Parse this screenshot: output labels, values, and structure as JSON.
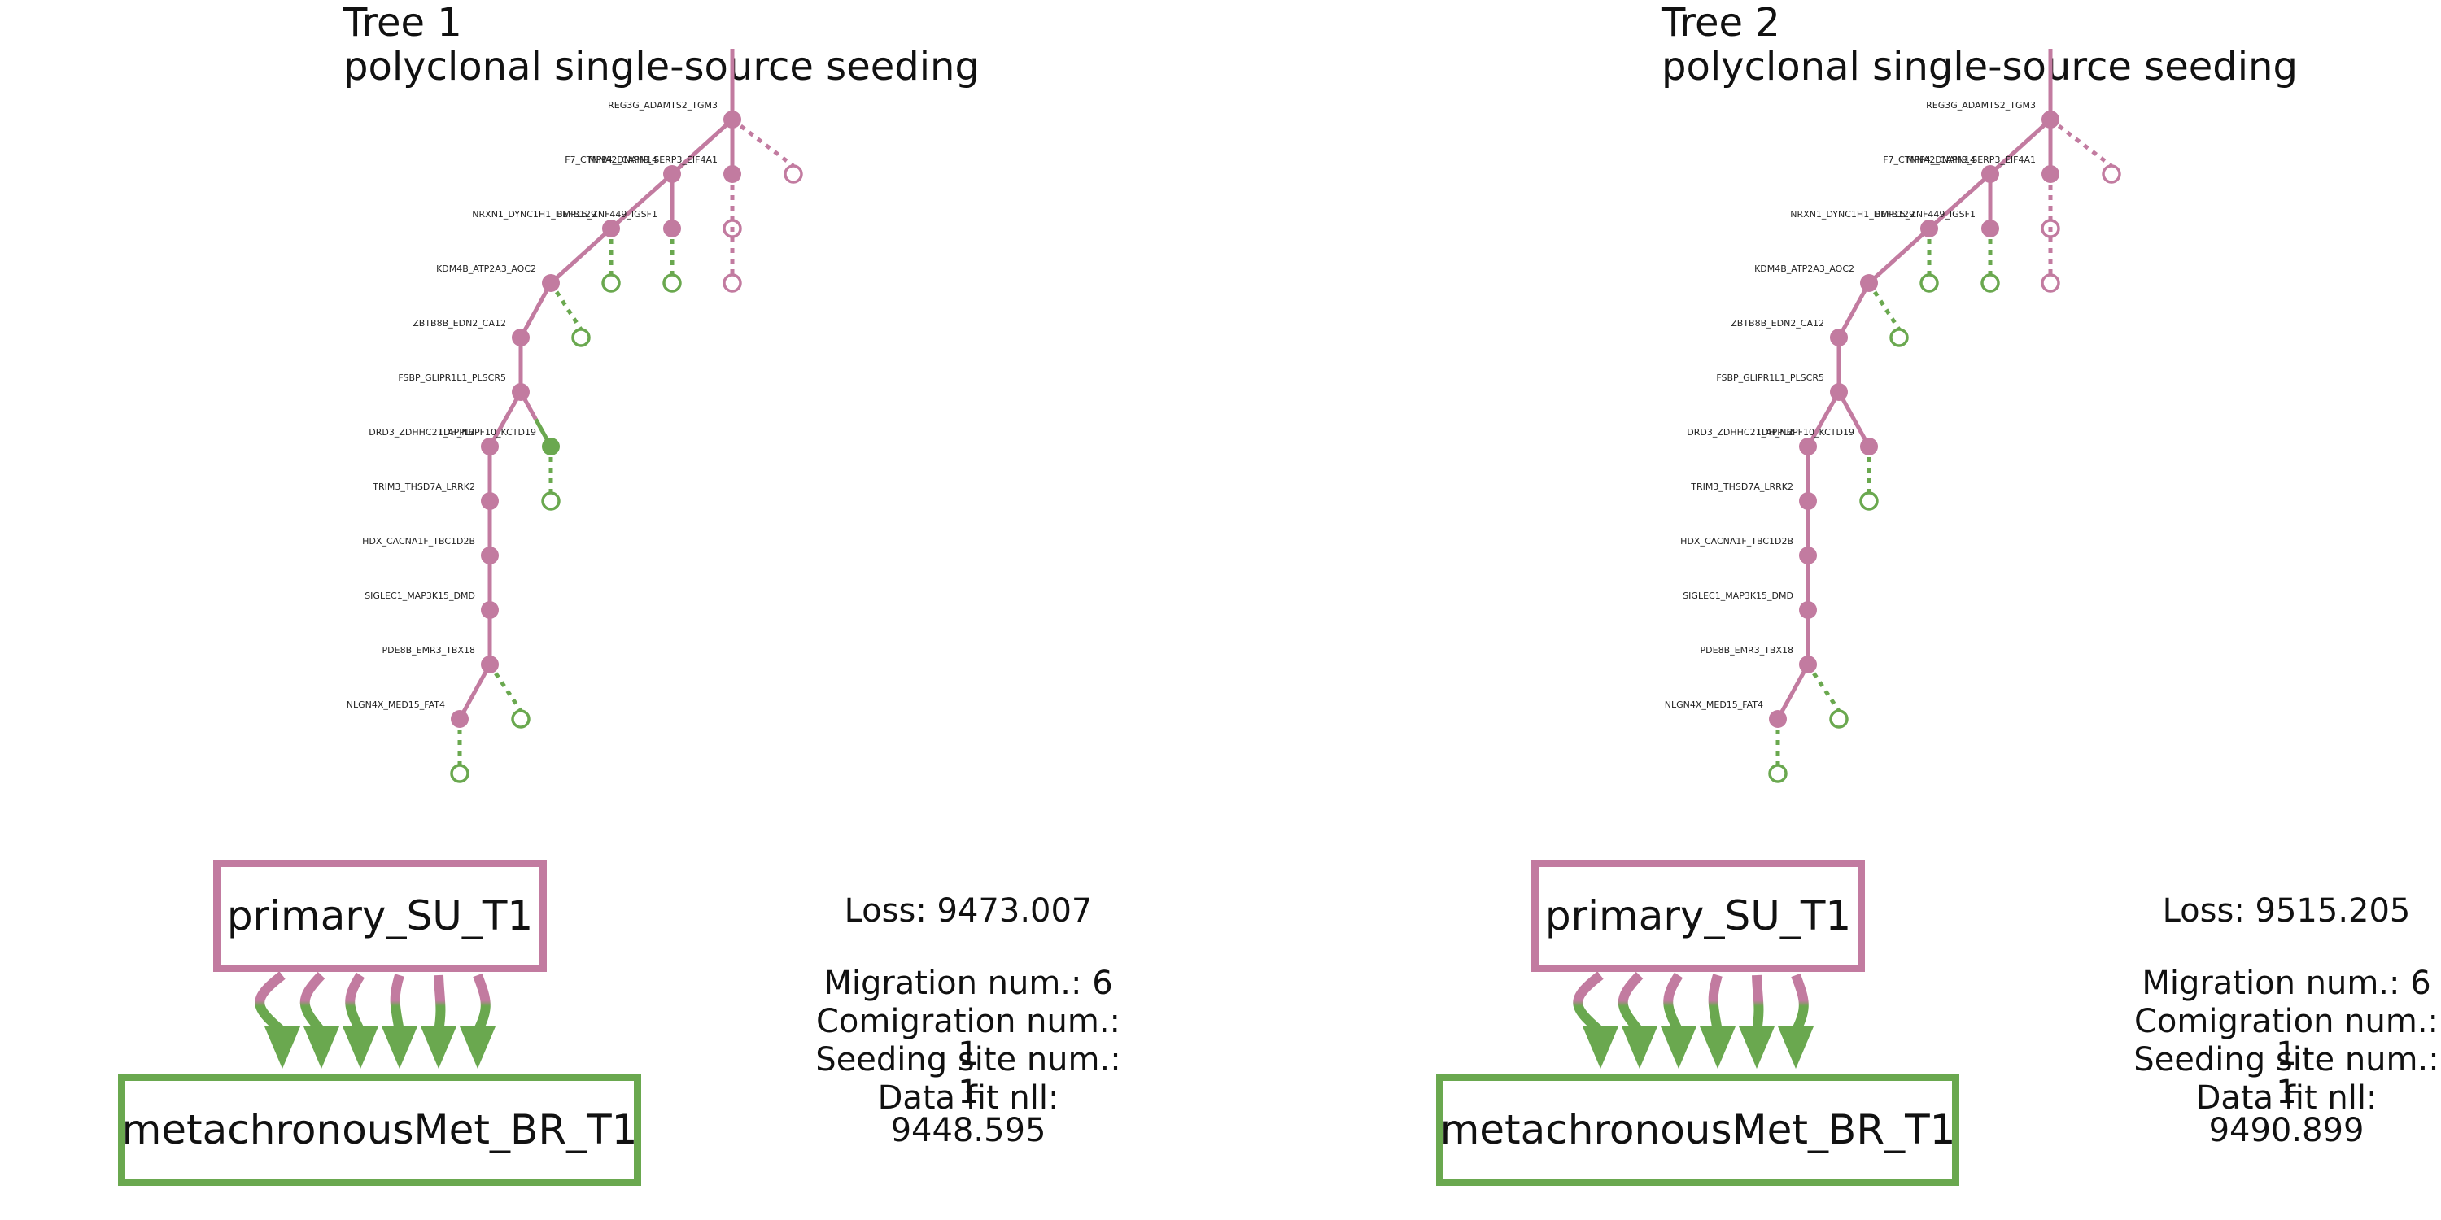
{
  "colors": {
    "primary": "#c27ba0",
    "metastasis": "#6aa84f"
  },
  "trees": [
    {
      "title": "Tree 1",
      "subtitle": "polyclonal single-source seeding",
      "nodes": [
        {
          "id": "REG3G_ADAMTS2_TGM3",
          "label": "REG3G_ADAMTS2_TGM3",
          "site": "primary"
        },
        {
          "id": "F7_CTNNA2_CAPN14",
          "label": "F7_CTNNA2_CAPN14",
          "site": "primary"
        },
        {
          "id": "MPP4_DNAH9_SERP3_EIF4A1",
          "label": "MPP4_DNAH9_SERP3_EIF4A1",
          "site": "primary"
        },
        {
          "id": "NRXN1_DYNC1H1_DEFB129",
          "label": "NRXN1_DYNC1H1_DEFB129",
          "site": "primary"
        },
        {
          "id": "BMP15_ZNF449_IGSF1",
          "label": "BMP15_ZNF449_IGSF1",
          "site": "primary"
        },
        {
          "id": "KDM4B_ATP2A3_AOC2",
          "label": "KDM4B_ATP2A3_AOC2",
          "site": "primary"
        },
        {
          "id": "ZBTB8B_EDN2_CA12",
          "label": "ZBTB8B_EDN2_CA12",
          "site": "primary"
        },
        {
          "id": "FSBP_GLIPR1L1_PLSCR5",
          "label": "FSBP_GLIPR1L1_PLSCR5",
          "site": "primary"
        },
        {
          "id": "DRD3_ZDHHC21_APPL2",
          "label": "DRD3_ZDHHC21_APPL2",
          "site": "primary"
        },
        {
          "id": "TDH_NBPF10_KCTD19",
          "label": "TDH_NBPF10_KCTD19",
          "site": "metastasis"
        },
        {
          "id": "TRIM3_THSD7A_LRRK2",
          "label": "TRIM3_THSD7A_LRRK2",
          "site": "primary"
        },
        {
          "id": "HDX_CACNA1F_TBC1D2B",
          "label": "HDX_CACNA1F_TBC1D2B",
          "site": "primary"
        },
        {
          "id": "SIGLEC1_MAP3K15_DMD",
          "label": "SIGLEC1_MAP3K15_DMD",
          "site": "primary"
        },
        {
          "id": "PDE8B_EMR3_TBX18",
          "label": "PDE8B_EMR3_TBX18",
          "site": "primary"
        },
        {
          "id": "NLGN4X_MED15_FAT4",
          "label": "NLGN4X_MED15_FAT4",
          "site": "primary"
        }
      ],
      "migration_graph": {
        "source": "primary_SU_T1",
        "target": "metachronousMet_BR_T1",
        "edge_count": 6
      },
      "stats": {
        "loss": "Loss: 9473.007",
        "migration": "Migration num.: 6",
        "comigration": "Comigration num.: 1",
        "seeding": "Seeding site num.: 1",
        "fit": "Data fit nll: 9448.595"
      }
    },
    {
      "title": "Tree 2",
      "subtitle": "polyclonal single-source seeding",
      "nodes": [
        {
          "id": "REG3G_ADAMTS2_TGM3",
          "label": "REG3G_ADAMTS2_TGM3",
          "site": "primary"
        },
        {
          "id": "F7_CTNNA2_CAPN14",
          "label": "F7_CTNNA2_CAPN14",
          "site": "primary"
        },
        {
          "id": "MPP4_DNAH9_SERP3_EIF4A1",
          "label": "MPP4_DNAH9_SERP3_EIF4A1",
          "site": "primary"
        },
        {
          "id": "NRXN1_DYNC1H1_DEFB129",
          "label": "NRXN1_DYNC1H1_DEFB129",
          "site": "primary"
        },
        {
          "id": "BMP15_ZNF449_IGSF1",
          "label": "BMP15_ZNF449_IGSF1",
          "site": "primary"
        },
        {
          "id": "KDM4B_ATP2A3_AOC2",
          "label": "KDM4B_ATP2A3_AOC2",
          "site": "primary"
        },
        {
          "id": "ZBTB8B_EDN2_CA12",
          "label": "ZBTB8B_EDN2_CA12",
          "site": "primary"
        },
        {
          "id": "FSBP_GLIPR1L1_PLSCR5",
          "label": "FSBP_GLIPR1L1_PLSCR5",
          "site": "primary"
        },
        {
          "id": "DRD3_ZDHHC21_APPL2",
          "label": "DRD3_ZDHHC21_APPL2",
          "site": "primary"
        },
        {
          "id": "TDH_NBPF10_KCTD19",
          "label": "TDH_NBPF10_KCTD19",
          "site": "primary"
        },
        {
          "id": "TRIM3_THSD7A_LRRK2",
          "label": "TRIM3_THSD7A_LRRK2",
          "site": "primary"
        },
        {
          "id": "HDX_CACNA1F_TBC1D2B",
          "label": "HDX_CACNA1F_TBC1D2B",
          "site": "primary"
        },
        {
          "id": "SIGLEC1_MAP3K15_DMD",
          "label": "SIGLEC1_MAP3K15_DMD",
          "site": "primary"
        },
        {
          "id": "PDE8B_EMR3_TBX18",
          "label": "PDE8B_EMR3_TBX18",
          "site": "primary"
        },
        {
          "id": "NLGN4X_MED15_FAT4",
          "label": "NLGN4X_MED15_FAT4",
          "site": "primary"
        }
      ],
      "migration_graph": {
        "source": "primary_SU_T1",
        "target": "metachronousMet_BR_T1",
        "edge_count": 6
      },
      "stats": {
        "loss": "Loss: 9515.205",
        "migration": "Migration num.: 6",
        "comigration": "Comigration num.: 1",
        "seeding": "Seeding site num.: 1",
        "fit": "Data fit nll: 9490.899"
      }
    }
  ]
}
